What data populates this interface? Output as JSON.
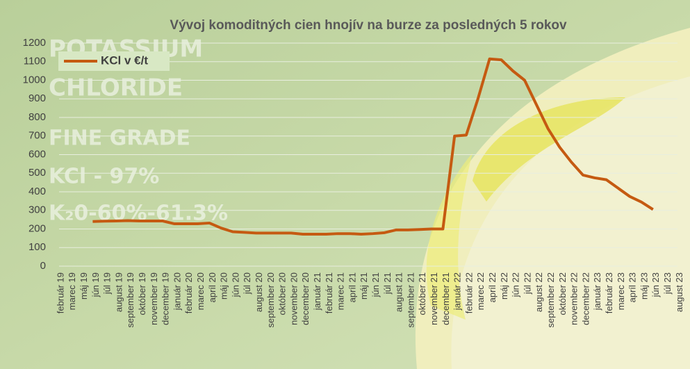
{
  "chart_data": {
    "type": "line",
    "title": "Vývoj komoditných cien hnojív na burze za posledných 5 rokov",
    "background_texts": [
      "POTASSIUM",
      "CHLORIDE",
      "FINE GRADE",
      "KCl - 97%",
      "K₂0-60%-61.3%"
    ],
    "categories": [
      "február 19",
      "marec 19",
      "máj 19",
      "jún 19",
      "júl 19",
      "august 19",
      "september 19",
      "október 19",
      "november 19",
      "december 19",
      "január 20",
      "február 20",
      "marec 20",
      "apríl 20",
      "máj 20",
      "jún 20",
      "júl 20",
      "august 20",
      "september 20",
      "október 20",
      "november 20",
      "december 20",
      "január 21",
      "február 21",
      "marec 21",
      "apríl 21",
      "máj 21",
      "jún 21",
      "júl 21",
      "august 21",
      "september 21",
      "október 21",
      "november 21",
      "december 21",
      "január 22",
      "február 22",
      "marec 22",
      "apríl 22",
      "máj 22",
      "jún 22",
      "júl 22",
      "august 22",
      "september 22",
      "október 22",
      "november 22",
      "december 22",
      "január 23",
      "február 23",
      "marec 23",
      "apríl 23",
      "máj 23",
      "jún 23",
      "júl 23",
      "august 23"
    ],
    "series": [
      {
        "name": "KCl v €/t",
        "color": "#c55a11",
        "values": [
          null,
          null,
          null,
          240,
          242,
          243,
          245,
          243,
          243,
          243,
          228,
          228,
          228,
          232,
          205,
          185,
          182,
          178,
          178,
          178,
          178,
          172,
          172,
          172,
          175,
          175,
          172,
          175,
          180,
          195,
          195,
          197,
          200,
          200,
          700,
          705,
          900,
          1115,
          1110,
          1050,
          1000,
          870,
          740,
          640,
          560,
          490,
          475,
          465,
          420,
          375,
          345,
          305,
          null,
          null
        ]
      }
    ],
    "ylim": [
      0,
      1200
    ],
    "yticks": [
      0,
      100,
      200,
      300,
      400,
      500,
      600,
      700,
      800,
      900,
      1000,
      1100,
      1200
    ],
    "grid": true,
    "legend": "top-left"
  }
}
